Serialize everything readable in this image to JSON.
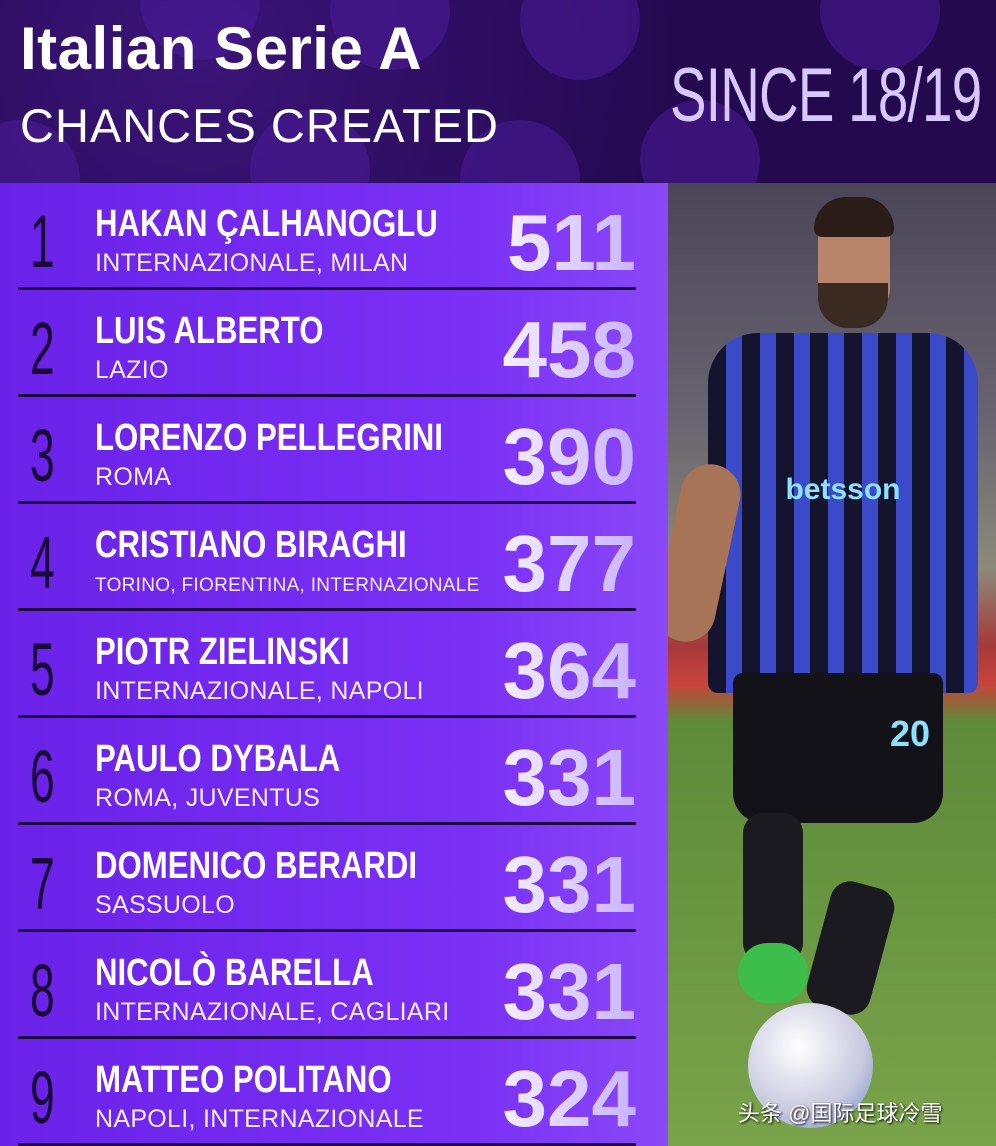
{
  "header": {
    "title": "Italian Serie A",
    "subtitle": "CHANCES CREATED",
    "since": "SINCE 18/19"
  },
  "rows": [
    {
      "rank": "1",
      "name": "HAKAN ÇALHANOGLU",
      "clubs": "INTERNAZIONALE, MILAN",
      "value": "511"
    },
    {
      "rank": "2",
      "name": "LUIS ALBERTO",
      "clubs": "LAZIO",
      "value": "458"
    },
    {
      "rank": "3",
      "name": "LORENZO PELLEGRINI",
      "clubs": "ROMA",
      "value": "390"
    },
    {
      "rank": "4",
      "name": "CRISTIANO BIRAGHI",
      "clubs": "TORINO, FIORENTINA, INTERNAZIONALE",
      "value": "377"
    },
    {
      "rank": "5",
      "name": "PIOTR ZIELINSKI",
      "clubs": "INTERNAZIONALE, NAPOLI",
      "value": "364"
    },
    {
      "rank": "6",
      "name": "PAULO DYBALA",
      "clubs": "ROMA, JUVENTUS",
      "value": "331"
    },
    {
      "rank": "7",
      "name": "DOMENICO BERARDI",
      "clubs": "SASSUOLO",
      "value": "331"
    },
    {
      "rank": "8",
      "name": "NICOLÒ BARELLA",
      "clubs": "INTERNAZIONALE, CAGLIARI",
      "value": "331"
    },
    {
      "rank": "9",
      "name": "MATTEO POLITANO",
      "clubs": "NAPOLI, INTERNAZIONALE",
      "value": "324"
    }
  ],
  "photo": {
    "sponsor": "betsson",
    "shirt_number": "20"
  },
  "watermark": "头条 @国际足球冷雪",
  "colors": {
    "header_bg": "#24094f",
    "list_bg": "#7a30f5",
    "rank": "#1a0838",
    "value": "#e6dcff"
  }
}
